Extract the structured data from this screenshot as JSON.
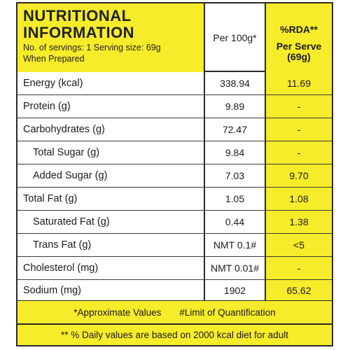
{
  "header": {
    "title_line1": "NUTRITIONAL",
    "title_line2": "INFORMATION",
    "servings": "No. of servings: 1 Serving size: 69g",
    "prepared": "When Prepared",
    "per100g": "Per 100g*",
    "rda": "%RDA**",
    "per_serve_line1": "Per Serve",
    "per_serve_line2": "(69g)"
  },
  "rows": [
    {
      "name": "Energy (kcal)",
      "per100g": "338.94",
      "rda": "11.69",
      "sub": false
    },
    {
      "name": "Protein (g)",
      "per100g": "9.89",
      "rda": "-",
      "sub": false
    },
    {
      "name": "Carbohydrates (g)",
      "per100g": "72.47",
      "rda": "-",
      "sub": false
    },
    {
      "name": "Total Sugar (g)",
      "per100g": "9.84",
      "rda": "-",
      "sub": true
    },
    {
      "name": "Added Sugar (g)",
      "per100g": "7.03",
      "rda": "9.70",
      "sub": true
    },
    {
      "name": "Total Fat (g)",
      "per100g": "1.05",
      "rda": "1.08",
      "sub": false
    },
    {
      "name": "Saturated Fat (g)",
      "per100g": "0.44",
      "rda": "1.38",
      "sub": true
    },
    {
      "name": "Trans Fat (g)",
      "per100g": "NMT 0.1#",
      "rda": "<5",
      "sub": true
    },
    {
      "name": "Cholesterol (mg)",
      "per100g": "NMT 0.01#",
      "rda": "-",
      "sub": false
    },
    {
      "name": "Sodium (mg)",
      "per100g": "1902",
      "rda": "65.62",
      "sub": false
    }
  ],
  "footer": {
    "approx": "*Approximate Values",
    "limit": "#Limit of Quantification",
    "daily": "** % Daily values are based on 2000 kcal diet for adult"
  },
  "colors": {
    "accent_yellow": "#f7ec2a",
    "border": "#2a2a2a"
  }
}
